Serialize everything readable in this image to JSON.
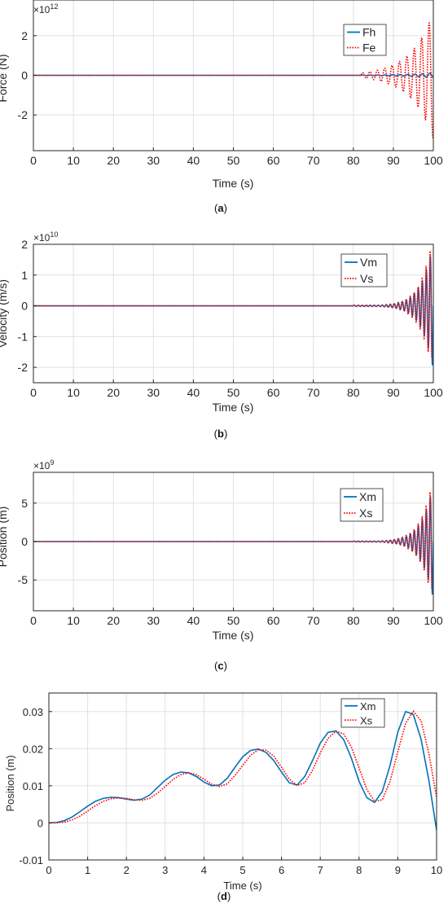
{
  "figure": {
    "panels": [
      {
        "caption": "(a)",
        "caption_parts": [
          "(",
          "a",
          ")"
        ]
      },
      {
        "caption": "(b)",
        "caption_parts": [
          "(",
          "b",
          ")"
        ]
      },
      {
        "caption": "(c)",
        "caption_parts": [
          "(",
          "c",
          ")"
        ]
      },
      {
        "caption": "(d)",
        "caption_parts": [
          "(",
          "d",
          ")"
        ]
      }
    ]
  },
  "colors": {
    "series_solid": "#0072BD",
    "series_dotted": "#FF0000",
    "grid": "#E0E0E0",
    "axis": "#262626"
  },
  "chart_data": [
    {
      "type": "line",
      "title": "",
      "xlabel": "Time (s)",
      "ylabel": "Force (N)",
      "exponent_base": "×10",
      "exponent_power": "12",
      "xlim": [
        0,
        100
      ],
      "ylim": [
        -3.8,
        3.8
      ],
      "xticks": [
        0,
        10,
        20,
        30,
        40,
        50,
        60,
        70,
        80,
        90,
        100
      ],
      "yticks": [
        -2,
        0,
        2
      ],
      "xtick_labels": [
        "0",
        "10",
        "20",
        "30",
        "40",
        "50",
        "60",
        "70",
        "80",
        "90",
        "100"
      ],
      "ytick_labels": [
        "-2",
        "0",
        "2"
      ],
      "grid": true,
      "legend_position": "top-right",
      "series": [
        {
          "name": "Fh",
          "style": "solid",
          "onset": 82,
          "period": 1.85,
          "phase": 0,
          "amp_final": 0.12,
          "amp_start": 0.001,
          "growth": 0.15,
          "drift": 0,
          "end": 100
        },
        {
          "name": "Fe",
          "style": "dotted",
          "onset": 82,
          "period": 1.85,
          "phase": 0.6,
          "amp_final": 3.2,
          "amp_start": 0.002,
          "growth": 0.18,
          "drift": 0,
          "end": 100
        }
      ]
    },
    {
      "type": "line",
      "title": "",
      "xlabel": "Time (s)",
      "ylabel": "Velocity (m/s)",
      "exponent_base": "×10",
      "exponent_power": "10",
      "xlim": [
        0,
        100
      ],
      "ylim": [
        -2.5,
        2
      ],
      "xticks": [
        0,
        10,
        20,
        30,
        40,
        50,
        60,
        70,
        80,
        90,
        100
      ],
      "yticks": [
        -2,
        -1,
        0,
        1,
        2
      ],
      "xtick_labels": [
        "0",
        "10",
        "20",
        "30",
        "40",
        "50",
        "60",
        "70",
        "80",
        "90",
        "100"
      ],
      "ytick_labels": [
        "-2",
        "-1",
        "0",
        "1",
        "2"
      ],
      "grid": true,
      "legend_position": "top-right",
      "series": [
        {
          "name": "Vm",
          "style": "solid",
          "onset": 80,
          "period": 1.0,
          "phase": 0,
          "amp_final": 2.1,
          "amp_start": 0.02,
          "growth": 0.35,
          "drift": 0,
          "end": 100
        },
        {
          "name": "Vs",
          "style": "dotted",
          "onset": 80,
          "period": 1.0,
          "phase": 0.35,
          "amp_final": 2.05,
          "amp_start": 0.02,
          "growth": 0.35,
          "drift": 0,
          "end": 99.6
        }
      ]
    },
    {
      "type": "line",
      "title": "",
      "xlabel": "Time (s)",
      "ylabel": "Position (m)",
      "exponent_base": "×10",
      "exponent_power": "9",
      "xlim": [
        0,
        100
      ],
      "ylim": [
        -9,
        9
      ],
      "xticks": [
        0,
        10,
        20,
        30,
        40,
        50,
        60,
        70,
        80,
        90,
        100
      ],
      "yticks": [
        -5,
        0,
        5
      ],
      "xtick_labels": [
        "0",
        "10",
        "20",
        "30",
        "40",
        "50",
        "60",
        "70",
        "80",
        "90",
        "100"
      ],
      "ytick_labels": [
        "-5",
        "0",
        "5"
      ],
      "grid": true,
      "legend_position": "top-right",
      "series": [
        {
          "name": "Xm",
          "style": "solid",
          "onset": 80,
          "period": 1.0,
          "phase": 0,
          "amp_final": 7.5,
          "amp_start": 0.05,
          "growth": 0.35,
          "drift": 0,
          "end": 100
        },
        {
          "name": "Xs",
          "style": "dotted",
          "onset": 80,
          "period": 1.0,
          "phase": 0.35,
          "amp_final": 7.4,
          "amp_start": 0.05,
          "growth": 0.35,
          "drift": 0,
          "end": 99.6
        }
      ]
    },
    {
      "type": "line",
      "title": "",
      "xlabel": "Time (s)",
      "ylabel": "Position (m)",
      "exponent_base": "",
      "exponent_power": "",
      "xlim": [
        0,
        10
      ],
      "ylim": [
        -0.01,
        0.035
      ],
      "xticks": [
        0,
        1,
        2,
        3,
        4,
        5,
        6,
        7,
        8,
        9,
        10
      ],
      "yticks": [
        -0.01,
        0,
        0.01,
        0.02,
        0.03
      ],
      "xtick_labels": [
        "0",
        "1",
        "2",
        "3",
        "4",
        "5",
        "6",
        "7",
        "8",
        "9",
        "10"
      ],
      "ytick_labels": [
        "-0.01",
        "0",
        "0.01",
        "0.02",
        "0.03"
      ],
      "grid": true,
      "legend_position": "top-right",
      "series": [
        {
          "name": "Xm",
          "style": "solid",
          "points": [
            [
              0,
              0
            ],
            [
              0.2,
              0.0001
            ],
            [
              0.4,
              0.0006
            ],
            [
              0.6,
              0.0016
            ],
            [
              0.8,
              0.003
            ],
            [
              1.0,
              0.0045
            ],
            [
              1.2,
              0.0058
            ],
            [
              1.4,
              0.0066
            ],
            [
              1.6,
              0.0069
            ],
            [
              1.8,
              0.0068
            ],
            [
              2.0,
              0.0064
            ],
            [
              2.2,
              0.0061
            ],
            [
              2.4,
              0.0064
            ],
            [
              2.6,
              0.0075
            ],
            [
              2.8,
              0.0095
            ],
            [
              3.0,
              0.0115
            ],
            [
              3.2,
              0.013
            ],
            [
              3.4,
              0.0137
            ],
            [
              3.6,
              0.0135
            ],
            [
              3.8,
              0.0125
            ],
            [
              4.0,
              0.011
            ],
            [
              4.2,
              0.01
            ],
            [
              4.4,
              0.0102
            ],
            [
              4.6,
              0.012
            ],
            [
              4.8,
              0.015
            ],
            [
              5.0,
              0.0178
            ],
            [
              5.2,
              0.0195
            ],
            [
              5.4,
              0.0199
            ],
            [
              5.6,
              0.019
            ],
            [
              5.8,
              0.0168
            ],
            [
              6.0,
              0.0137
            ],
            [
              6.2,
              0.0108
            ],
            [
              6.4,
              0.0102
            ],
            [
              6.6,
              0.0125
            ],
            [
              6.8,
              0.0168
            ],
            [
              7.0,
              0.0215
            ],
            [
              7.2,
              0.0244
            ],
            [
              7.4,
              0.0248
            ],
            [
              7.6,
              0.0225
            ],
            [
              7.8,
              0.0175
            ],
            [
              8.0,
              0.0112
            ],
            [
              8.2,
              0.0068
            ],
            [
              8.4,
              0.0055
            ],
            [
              8.6,
              0.0085
            ],
            [
              8.8,
              0.0155
            ],
            [
              9.0,
              0.0245
            ],
            [
              9.2,
              0.03
            ],
            [
              9.4,
              0.0292
            ],
            [
              9.6,
              0.0225
            ],
            [
              9.8,
              0.0115
            ],
            [
              10.0,
              -0.002
            ]
          ]
        },
        {
          "name": "Xs",
          "style": "dotted",
          "points": [
            [
              0,
              0
            ],
            [
              0.2,
              0.0
            ],
            [
              0.4,
              0.0002
            ],
            [
              0.6,
              0.0008
            ],
            [
              0.8,
              0.0018
            ],
            [
              1.0,
              0.0032
            ],
            [
              1.2,
              0.0046
            ],
            [
              1.4,
              0.0058
            ],
            [
              1.6,
              0.0065
            ],
            [
              1.8,
              0.0067
            ],
            [
              2.0,
              0.0066
            ],
            [
              2.2,
              0.0062
            ],
            [
              2.4,
              0.0061
            ],
            [
              2.6,
              0.0066
            ],
            [
              2.8,
              0.008
            ],
            [
              3.0,
              0.0098
            ],
            [
              3.2,
              0.0117
            ],
            [
              3.4,
              0.013
            ],
            [
              3.6,
              0.0135
            ],
            [
              3.8,
              0.013
            ],
            [
              4.0,
              0.0118
            ],
            [
              4.2,
              0.0104
            ],
            [
              4.4,
              0.0098
            ],
            [
              4.6,
              0.0105
            ],
            [
              4.8,
              0.0128
            ],
            [
              5.0,
              0.0155
            ],
            [
              5.2,
              0.0182
            ],
            [
              5.4,
              0.0197
            ],
            [
              5.6,
              0.0196
            ],
            [
              5.8,
              0.018
            ],
            [
              6.0,
              0.015
            ],
            [
              6.2,
              0.0118
            ],
            [
              6.4,
              0.0101
            ],
            [
              6.6,
              0.0108
            ],
            [
              6.8,
              0.0142
            ],
            [
              7.0,
              0.0188
            ],
            [
              7.2,
              0.0228
            ],
            [
              7.4,
              0.0247
            ],
            [
              7.6,
              0.024
            ],
            [
              7.8,
              0.0205
            ],
            [
              8.0,
              0.0148
            ],
            [
              8.2,
              0.009
            ],
            [
              8.4,
              0.0058
            ],
            [
              8.6,
              0.0062
            ],
            [
              8.8,
              0.0112
            ],
            [
              9.0,
              0.0192
            ],
            [
              9.2,
              0.0268
            ],
            [
              9.4,
              0.0301
            ],
            [
              9.6,
              0.0275
            ],
            [
              9.8,
              0.0188
            ],
            [
              10.0,
              0.0068
            ]
          ]
        }
      ]
    }
  ]
}
